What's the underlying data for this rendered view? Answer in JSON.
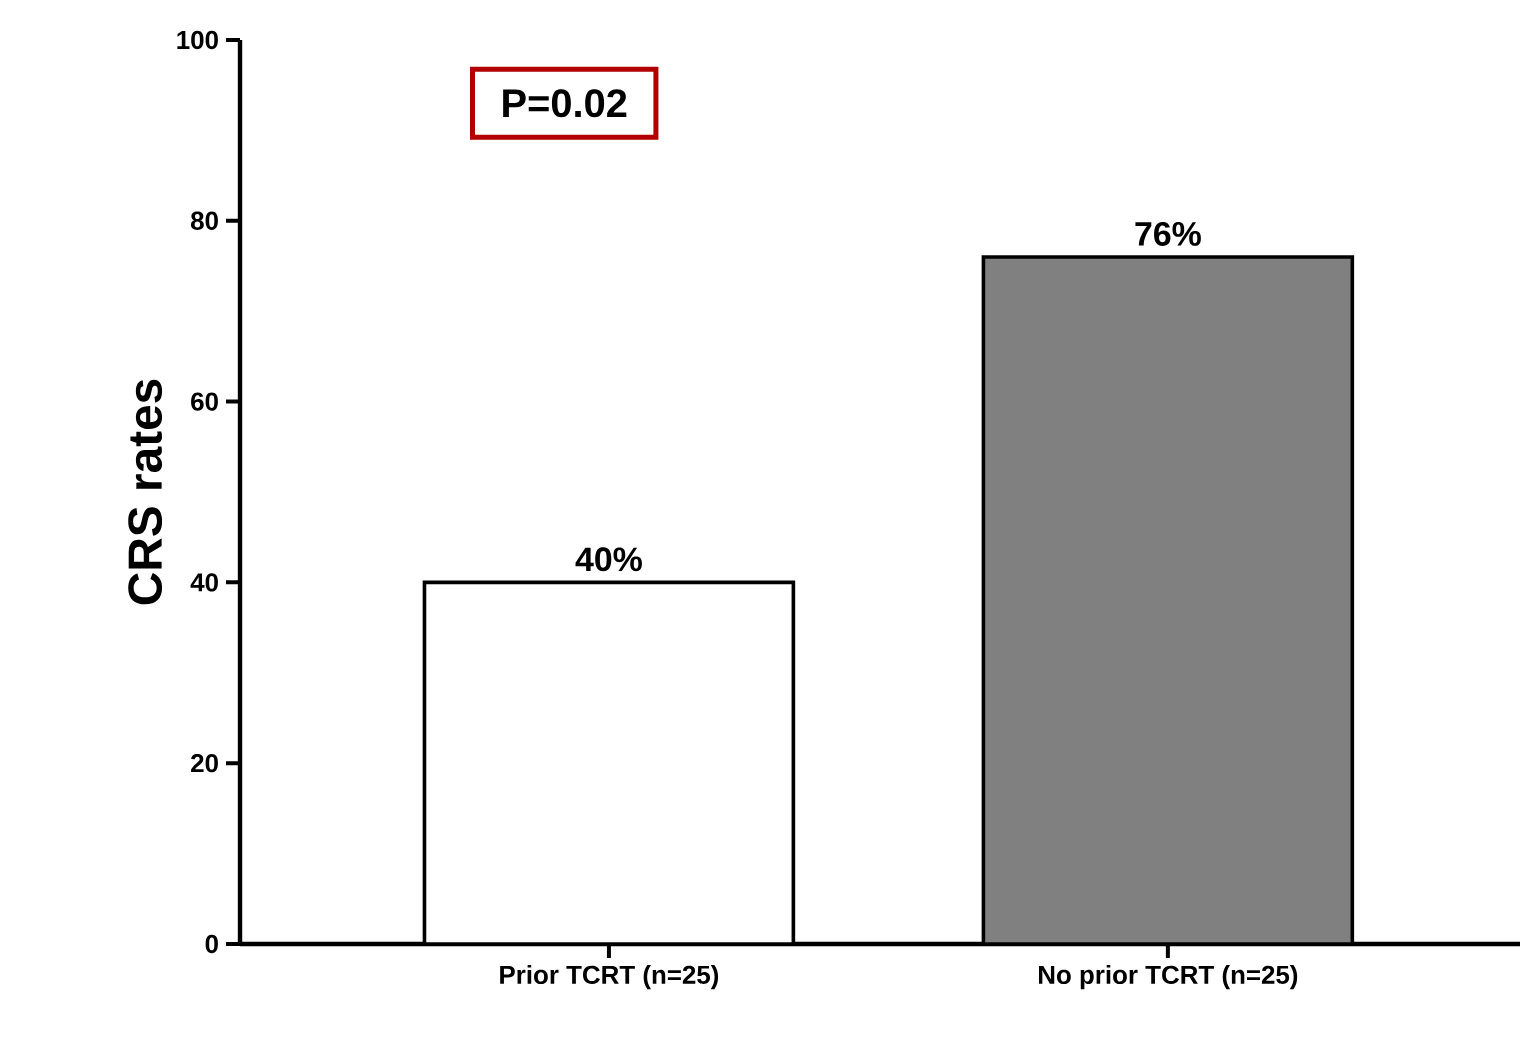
{
  "chart_data": {
    "type": "bar",
    "ylabel": "CRS rates",
    "categories": [
      "Prior TCRT (n=25)",
      "No prior TCRT (n=25)"
    ],
    "values": [
      40,
      76
    ],
    "colors": [
      "#ffffff",
      "#808080"
    ],
    "value_labels": [
      "40%",
      "76%"
    ],
    "ylim": [
      0,
      100
    ],
    "yticks": [
      0,
      20,
      40,
      60,
      80,
      100
    ],
    "annotations": [
      "P=0.02"
    ]
  }
}
